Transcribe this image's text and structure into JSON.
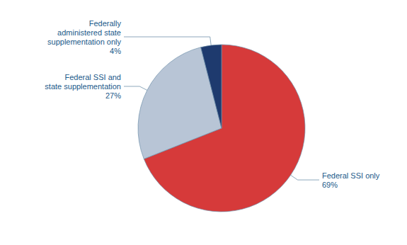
{
  "chart_data": {
    "type": "pie",
    "categories": [
      "Federal SSI only",
      "Federal SSI and\nstate supplementation",
      "Federally\nadministered state\nsupplementation only"
    ],
    "values": [
      69,
      27,
      4
    ],
    "value_labels": [
      "69%",
      "27%",
      "4%"
    ],
    "data_labels": true,
    "colors": [
      "#d63a3a",
      "#b8c5d6",
      "#1e3a6e"
    ]
  }
}
